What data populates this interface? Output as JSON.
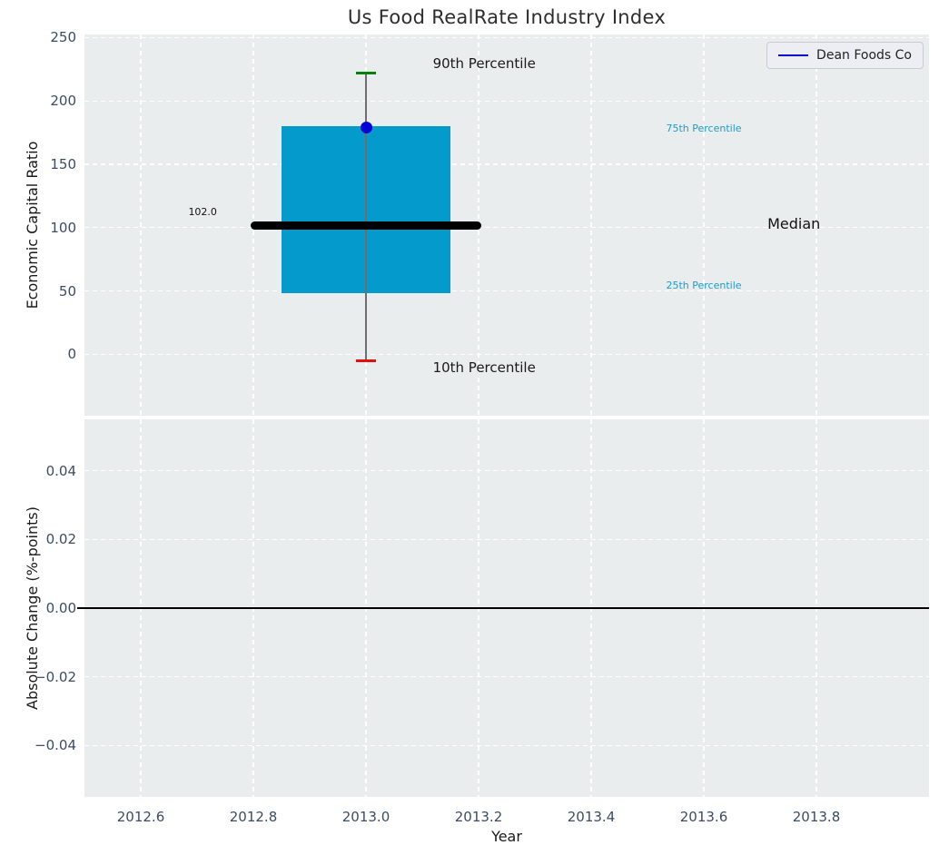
{
  "figure": {
    "title": "Us Food RealRate Industry Index",
    "background": "#ffffff",
    "axes_background": "#e9edee",
    "tick_label_color": "#3d4c63"
  },
  "chart_data": [
    {
      "type": "boxplot",
      "title": "Us Food RealRate Industry Index",
      "ylabel": "Economic Capital Ratio",
      "xlabel": "",
      "xlim": [
        2012.5,
        2014.0
      ],
      "ylim": [
        -48.5,
        252.5
      ],
      "grid": true,
      "legend": {
        "label": "Dean Foods Co",
        "position": "upper right",
        "line_color": "#0202d6"
      },
      "xticks": {
        "values": [
          2012.6,
          2012.8,
          2013.0,
          2013.2,
          2013.4,
          2013.6,
          2013.8
        ],
        "labels": [
          "2012.6",
          "2012.8",
          "2013.0",
          "2013.2",
          "2013.4",
          "2013.6",
          "2013.8"
        ],
        "show_labels": false
      },
      "yticks": {
        "values": [
          0,
          50,
          100,
          150,
          200,
          250
        ],
        "labels": [
          "0",
          "50",
          "100",
          "150",
          "200",
          "250"
        ]
      },
      "box": {
        "x": 2013.0,
        "p10": -5,
        "p25": 48,
        "median": 102,
        "p75": 180,
        "p90": 222,
        "box_halfwidth": 0.15,
        "median_halfwidth": 0.205,
        "cap_halfwidth": 0.017,
        "box_color": "#049acb",
        "median_color": "#000000",
        "median_linewidth": 9,
        "whisker_color": "#6e6e6e",
        "cap_top_color": "#058205",
        "cap_bottom_color": "#e31010"
      },
      "series": [
        {
          "name": "Dean Foods Co",
          "type": "scatter",
          "x": [
            2013.0
          ],
          "y": [
            179
          ],
          "color": "#0202d6",
          "marker_size": 13
        }
      ],
      "annotations": [
        {
          "text": "90th Percentile",
          "x": 2013.21,
          "y": 229,
          "color": "#1a1a1a",
          "size": 15
        },
        {
          "text": "10th Percentile",
          "x": 2013.21,
          "y": -11,
          "color": "#1a1a1a",
          "size": 15
        },
        {
          "text": "75th Percentile",
          "x": 2013.6,
          "y": 178,
          "color": "#1b9ccd",
          "size": 11
        },
        {
          "text": "25th Percentile",
          "x": 2013.6,
          "y": 54,
          "color": "#1b9ccd",
          "size": 11
        },
        {
          "text": "Median",
          "x": 2013.76,
          "y": 103,
          "color": "#111111",
          "size": 16
        },
        {
          "text": "102.0",
          "x": 2012.71,
          "y": 112,
          "color": "#111111",
          "size": 11
        }
      ]
    },
    {
      "type": "line",
      "title": "",
      "ylabel": "Absolute Change (%-points)",
      "xlabel": "Year",
      "xlim": [
        2012.5,
        2014.0
      ],
      "ylim": [
        -0.055,
        0.055
      ],
      "grid": true,
      "xticks": {
        "values": [
          2012.6,
          2012.8,
          2013.0,
          2013.2,
          2013.4,
          2013.6,
          2013.8
        ],
        "labels": [
          "2012.6",
          "2012.8",
          "2013.0",
          "2013.2",
          "2013.4",
          "2013.6",
          "2013.8"
        ],
        "show_labels": true
      },
      "yticks": {
        "values": [
          0.04,
          0.02,
          0,
          -0.02,
          -0.04
        ],
        "labels": [
          "0.04",
          "0.02",
          "0.00",
          "−0.02",
          "−0.04"
        ]
      },
      "zero_line": {
        "y": 0,
        "color": "#000000",
        "linewidth": 2
      },
      "series": []
    }
  ]
}
